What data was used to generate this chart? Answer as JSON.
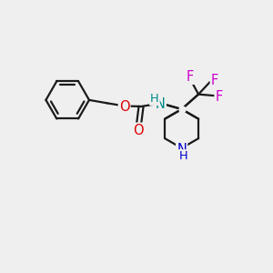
{
  "bg_color": "#efefef",
  "bond_color": "#1a1a1a",
  "bond_width": 1.6,
  "atom_colors": {
    "O": "#dd0000",
    "N_amine": "#008888",
    "N_ring": "#0000cc",
    "F": "#cc00cc",
    "C": "#1a1a1a"
  },
  "font_size_atom": 10.5,
  "fig_width": 3.0,
  "fig_height": 3.0,
  "dpi": 100,
  "xlim": [
    0,
    10
  ],
  "ylim": [
    0,
    10
  ]
}
